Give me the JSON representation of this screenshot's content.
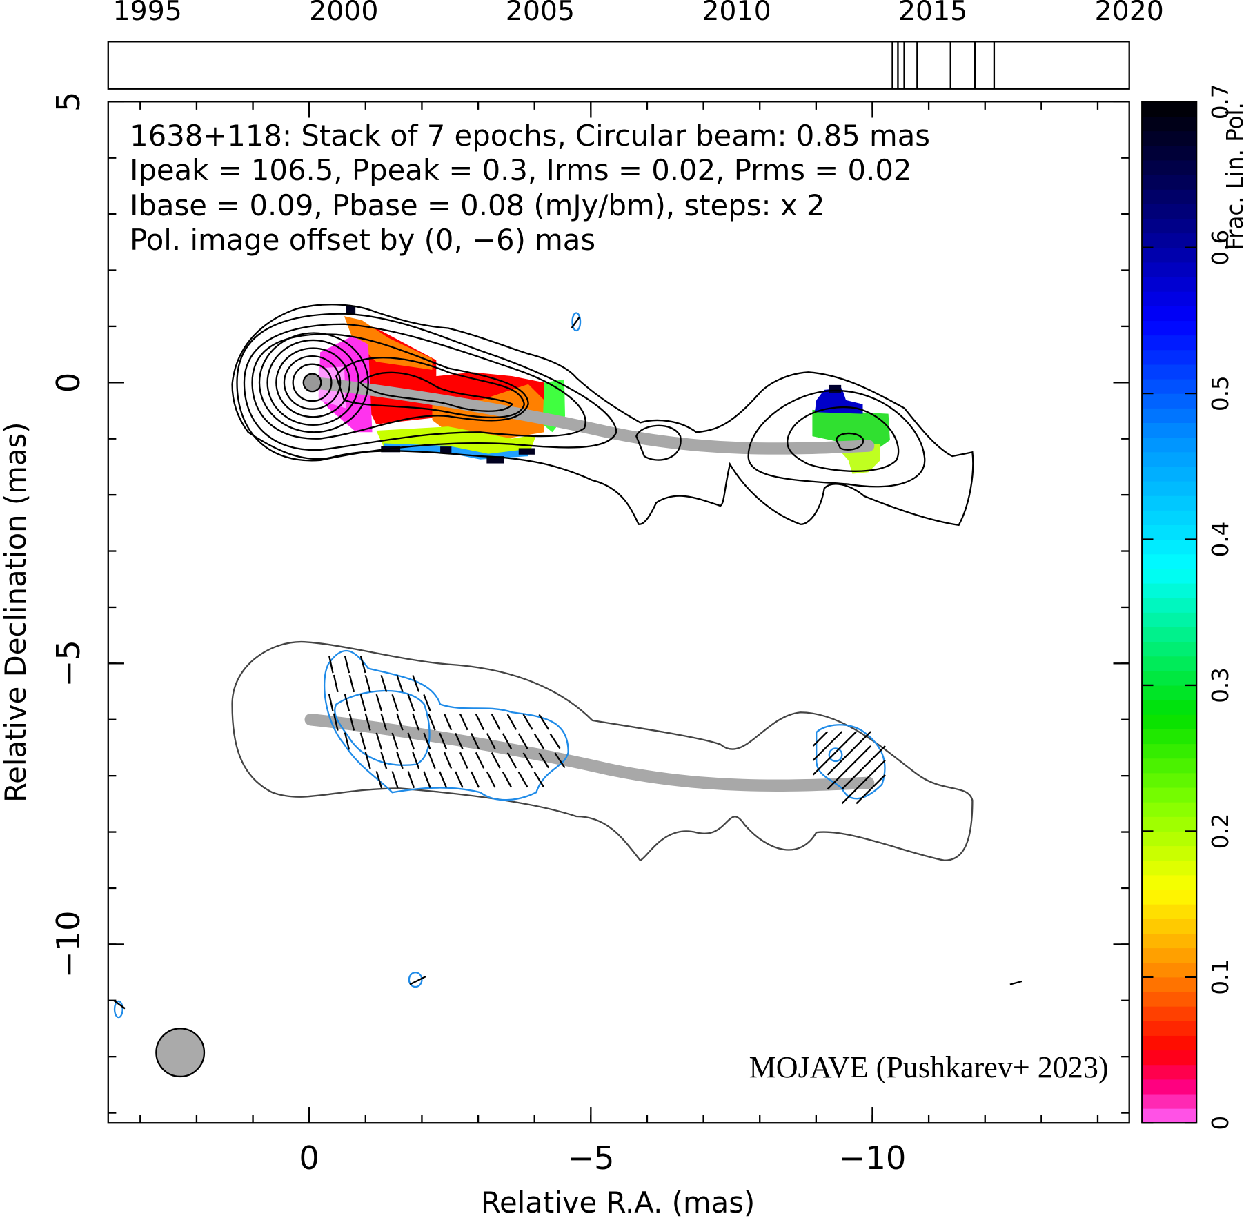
{
  "chart_data": {
    "type": "vlbi-map",
    "annotations": [
      "1638+118: Stack of 7 epochs, Circular beam: 0.85 mas",
      "Ipeak = 106.5, Ppeak = 0.3, Irms = 0.02, Prms = 0.02",
      "Ibase = 0.09, Pbase = 0.08 (mJy/bm), steps: x 2"
    ],
    "pol_note": "Pol. image offset by (0, −6) mas",
    "pol_note_color": "#1f8be8",
    "credit": "MOJAVE (Pushkarev+ 2023)",
    "credit_color": "#0000ff",
    "xlabel": "Relative R.A. (mas)",
    "ylabel": "Relative Declination (mas)",
    "xlim": [
      3.57,
      -14.56
    ],
    "xticks": [
      0,
      {
        "value": -5,
        "label": "−5"
      },
      {
        "value": -10,
        "label": "−10"
      }
    ],
    "x_minor_ticks": [
      3,
      2,
      1,
      0,
      -1,
      -2,
      -3,
      -4,
      -5,
      -6,
      -7,
      -8,
      -9,
      -10,
      -11,
      -12,
      -13,
      -14
    ],
    "ylim": [
      -13.18,
      5
    ],
    "yticks": [
      5,
      0,
      {
        "value": -5,
        "label": "−5"
      },
      {
        "value": -10,
        "label": "−10"
      }
    ],
    "y_minor_ticks": [
      5,
      4,
      3,
      2,
      1,
      0,
      -1,
      -2,
      -3,
      -4,
      -5,
      -6,
      -7,
      -8,
      -9,
      -10,
      -11,
      -12,
      -13
    ],
    "time_axis": {
      "xlim": [
        1994,
        2020
      ],
      "xticks": [
        1995,
        2000,
        2005,
        2010,
        2015,
        2020
      ],
      "epochs": [
        2013.97,
        2014.11,
        2014.27,
        2014.6,
        2015.45,
        2016.07,
        2016.56
      ],
      "color": "#000000"
    },
    "colorbar": {
      "label": "Frac. Lin. Pol.",
      "lim": [
        0,
        0.7
      ],
      "ticks": [
        0,
        0.1,
        0.2,
        0.3,
        0.4,
        0.5,
        0.6,
        0.7
      ],
      "colormap": [
        {
          "value": 0,
          "color": "#ff66ff"
        },
        {
          "value": 0.025,
          "color": "#ff0080"
        },
        {
          "value": 0.05,
          "color": "#ff0000"
        },
        {
          "value": 0.1,
          "color": "#ff8000"
        },
        {
          "value": 0.16,
          "color": "#ffff00"
        },
        {
          "value": 0.22,
          "color": "#80ff00"
        },
        {
          "value": 0.28,
          "color": "#00e000"
        },
        {
          "value": 0.38,
          "color": "#00ffff"
        },
        {
          "value": 0.47,
          "color": "#0090ff"
        },
        {
          "value": 0.55,
          "color": "#0000ff"
        },
        {
          "value": 0.62,
          "color": "#000080"
        },
        {
          "value": 0.7,
          "color": "#000000"
        }
      ]
    }
  }
}
